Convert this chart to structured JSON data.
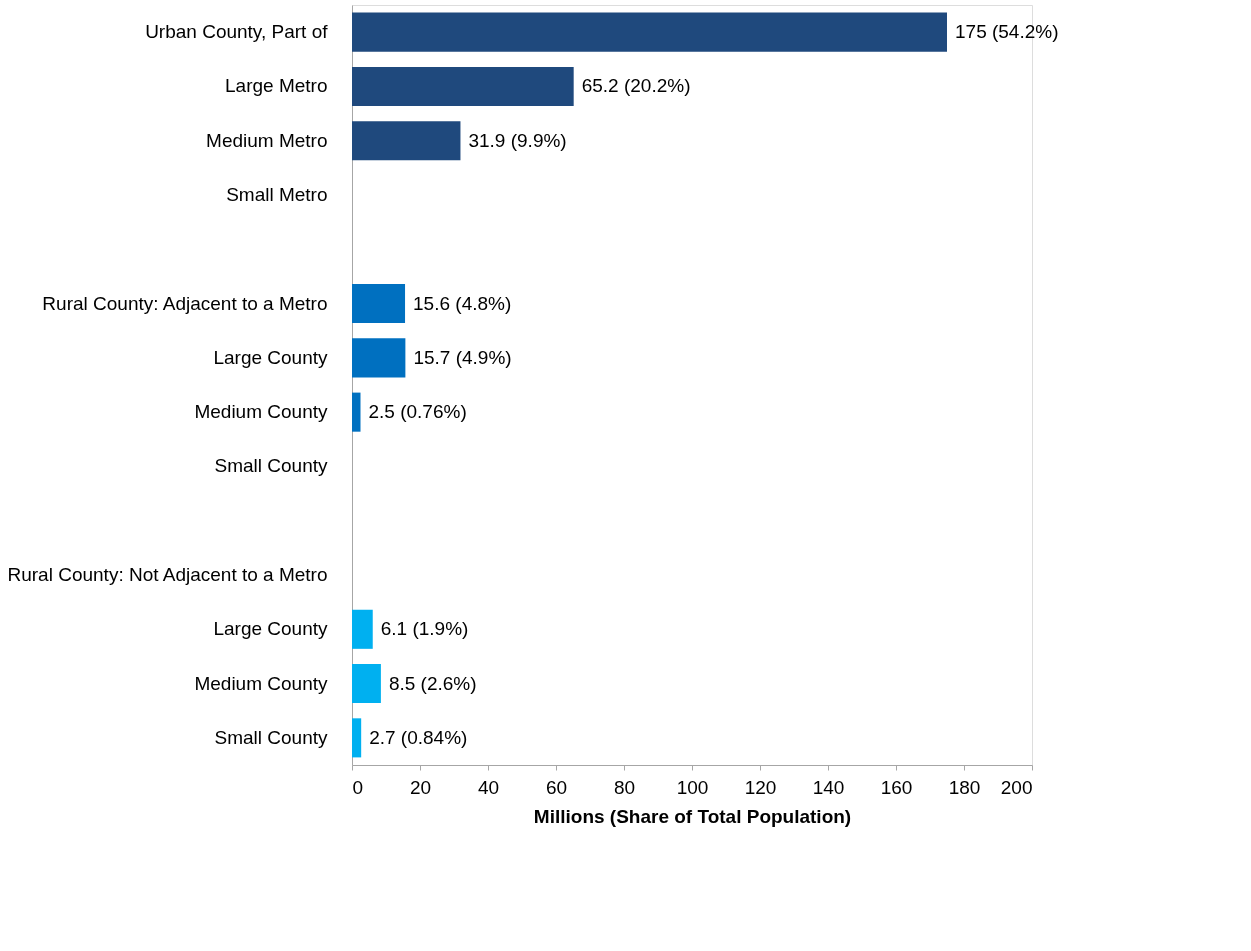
{
  "chart_data": {
    "type": "bar",
    "orientation": "horizontal",
    "xlabel": "Millions (Share of Total Population)",
    "categories": [
      "Urban County, Part of",
      "Large Metro",
      "Medium Metro",
      "Small Metro",
      null,
      "Rural County:  Adjacent to a Metro",
      "Large County",
      "Medium County",
      "Small County",
      null,
      "Rural County: Not Adjacent to a Metro",
      "Large County",
      "Medium County",
      "Small County"
    ],
    "values": [
      175,
      65.2,
      31.9,
      null,
      null,
      15.6,
      15.7,
      2.5,
      null,
      null,
      null,
      6.1,
      8.5,
      2.7
    ],
    "colors": [
      "#1f497d",
      "#1f497d",
      "#1f497d",
      "#1f497d",
      "#0070c0",
      "#0070c0",
      "#0070c0",
      "#0070c0",
      "#0070c0",
      "#00b0f0",
      "#00b0f0",
      "#00b0f0",
      "#00b0f0",
      "#00b0f0"
    ],
    "value_labels": [
      "175 (54.2%)",
      "65.2 (20.2%)",
      "31.9 (9.9%)",
      null,
      null,
      "15.6 (4.8%)",
      "15.7 (4.9%)",
      "2.5 (0.76%)",
      null,
      null,
      null,
      "6.1 (1.9%)",
      "8.5 (2.6%)",
      "2.7 (0.84%)"
    ],
    "xlim": [
      0,
      200
    ],
    "xticks": [
      0,
      20,
      40,
      60,
      80,
      100,
      120,
      140,
      160,
      180,
      200
    ],
    "grid": false
  }
}
